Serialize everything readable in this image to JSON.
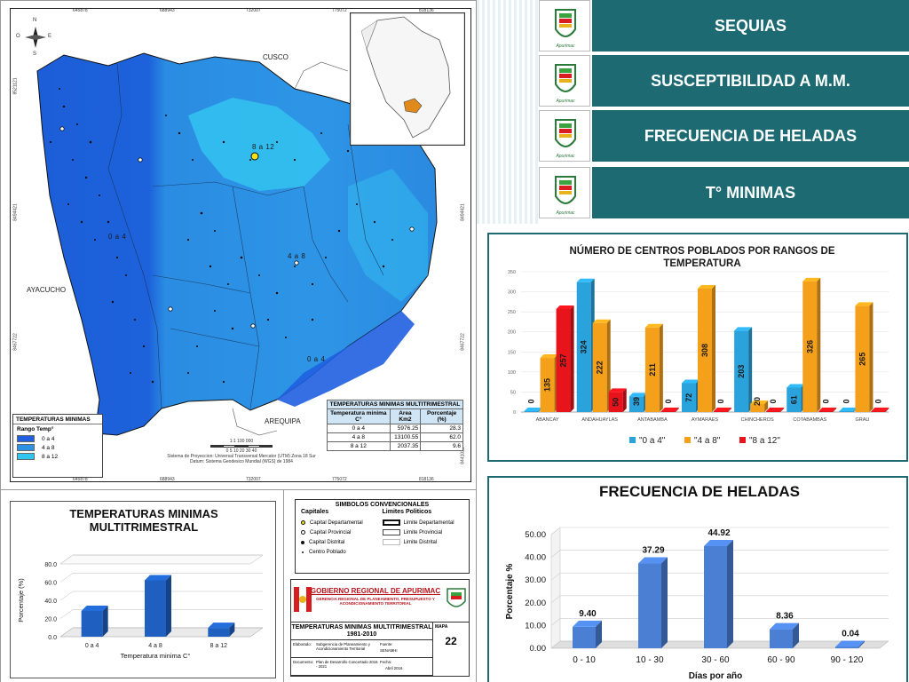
{
  "map": {
    "top_ticks": [
      "645878",
      "688943",
      "732007",
      "775072",
      "818136"
    ],
    "bottom_ticks": [
      "645878",
      "688943",
      "732007",
      "775072",
      "818136"
    ],
    "left_ticks": [
      "8521121",
      "8494421",
      "8467722",
      "8441022"
    ],
    "right_ticks": [
      "8521121",
      "8494421",
      "8467722",
      "8441022"
    ],
    "compass": {
      "n": "N",
      "s": "S",
      "e": "E",
      "o": "O"
    },
    "regions": {
      "cusco": "CUSCO",
      "ayacucho": "AYACUCHO",
      "arequipa": "AREQUIPA"
    },
    "zone_labels": [
      "0 a 4",
      "4 a 8",
      "8 a 12",
      "0 a 4"
    ],
    "legend": {
      "title": "TEMPERATURAS MINIMAS",
      "subtitle": "Rango Temp°",
      "items": [
        {
          "label": "0 a 4",
          "color": "#1f5fe0"
        },
        {
          "label": "4 a 8",
          "color": "#2d91e4"
        },
        {
          "label": "8 a 12",
          "color": "#2fc6f0"
        }
      ]
    },
    "scale": {
      "ratio": "1:1 100 000",
      "ticks": "0  5  10    20    30    40",
      "projection": "Sistema de Proyeccion: Universal Transversal Mercator (UTM) Zona 18 Sur",
      "datum": "Datum: Sistema Geodesico Mundial (WGS) de 1984"
    },
    "area_table": {
      "title": "TEMPERATURAS MINIMAS MULTITRIMESTRAL",
      "headers": [
        "Temperatura minima C°",
        "Area Km2",
        "Porcentaje (%)"
      ],
      "rows": [
        [
          "0 a 4",
          "5976.25",
          "28.3"
        ],
        [
          "4 a 8",
          "13100.55",
          "62.0"
        ],
        [
          "8 a 12",
          "2037.35",
          "9.6"
        ]
      ]
    }
  },
  "small_chart": {
    "title_line1": "TEMPERATURAS MINIMAS",
    "title_line2": "MULTITRIMESTRAL"
  },
  "symbols": {
    "title": "SIMBOLOS CONVENCIONALES",
    "capitals_header": "Capitales",
    "limits_header": "Limites Politicos",
    "capitals": [
      "Capital Departamental",
      "Capital Provincial",
      "Capital Distrital",
      "Centro Poblado"
    ],
    "limits": [
      "Limite Departamental",
      "Limite Provincial",
      "Limite Distrital"
    ]
  },
  "institution": {
    "name": "GOBIERNO REGIONAL DE APURIMAC",
    "office": "GERENCIA REGIONAL DE PLANEAMIENTO, PRESUPUESTO Y ACONDICIONAMIENTO TERRITORIAL",
    "map_title": "TEMPERATURAS MINIMAS MULTITRIMESTRAL",
    "map_period": "1981-2010",
    "elaborado_label": "Elaborado:",
    "elaborado_value": "Subgerencia de Planeamiento y Acondicionamiento Territorial",
    "fuente_label": "Fuente:",
    "fuente_value": "SENAMHI",
    "documento_label": "Documento:",
    "documento_value": "Plan de Desarrollo Concertado 2016 - 2021",
    "fecha_label": "Fecha:",
    "fecha_value": "Abril 2016",
    "mapa_label": "MAPA",
    "mapa_number": "22"
  },
  "menu": {
    "items": [
      "SEQUIAS",
      "SUSCEPTIBILIDAD A M.M.",
      "FRECUENCIA DE HELADAS",
      "T° MINIMAS"
    ],
    "color": "#1d6a72"
  },
  "chart_data": [
    {
      "type": "bar",
      "title": "TEMPERATURAS MINIMAS MULTITRIMESTRAL",
      "categories": [
        "0 a 4",
        "4 a 8",
        "8 a 12"
      ],
      "values": [
        28.3,
        62.0,
        9.6
      ],
      "xlabel": "Temperatura minima C°",
      "ylabel": "Porcentaje (%)",
      "ylim": [
        0,
        80
      ],
      "yticks": [
        "0.0",
        "20.0",
        "40.0",
        "60.0",
        "80.0"
      ],
      "color": "#1f5fc0"
    },
    {
      "type": "bar",
      "title": "NÚMERO DE CENTROS POBLADOS POR RANGOS DE TEMPERATURA",
      "categories": [
        "ABANCAY",
        "ANDAHUAYLAS",
        "ANTABAMBA",
        "AYMARAES",
        "CHINCHEROS",
        "COTABAMBAS",
        "GRAU"
      ],
      "series": [
        {
          "name": "\"0 a 4\"",
          "values": [
            0,
            324,
            39,
            72,
            203,
            61,
            0
          ],
          "color": "#2aa3dc"
        },
        {
          "name": "\"4 a 8\"",
          "values": [
            135,
            222,
            211,
            308,
            20,
            326,
            265
          ],
          "color": "#f5a01a"
        },
        {
          "name": "\"8 a 12\"",
          "values": [
            257,
            50,
            0,
            0,
            0,
            0,
            0
          ],
          "color": "#e8141c"
        }
      ],
      "ylim": [
        0,
        350
      ],
      "yticks": [
        "0",
        "50",
        "100",
        "150",
        "200",
        "250",
        "300",
        "350"
      ]
    },
    {
      "type": "bar",
      "title": "FRECUENCIA DE HELADAS",
      "categories": [
        "0 - 10",
        "10 - 30",
        "30 - 60",
        "60 - 90",
        "90 - 120"
      ],
      "values": [
        9.4,
        37.29,
        44.92,
        8.36,
        0.04
      ],
      "value_labels": [
        "9.40",
        "37.29",
        "44.92",
        "8.36",
        "0.04"
      ],
      "xlabel": "Días por año",
      "ylabel": "Porcentaje %",
      "ylim": [
        0,
        50
      ],
      "yticks": [
        "0.00",
        "10.00",
        "20.00",
        "30.00",
        "40.00",
        "50.00"
      ],
      "color": "#4a7fd4"
    }
  ]
}
